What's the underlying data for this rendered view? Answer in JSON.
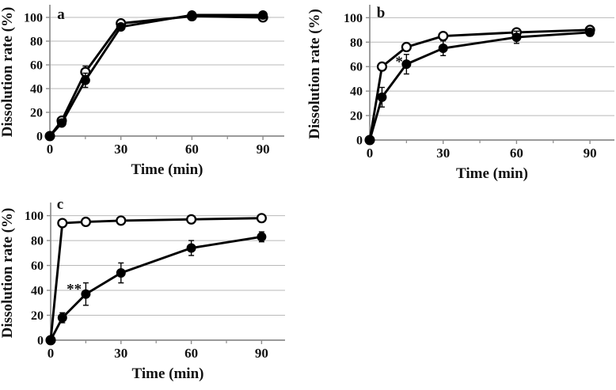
{
  "figure": {
    "background": "#ffffff",
    "text_color": "#111111",
    "gridline_color": "#b9b9b9",
    "axis_color": "#8c8c8c",
    "series_color": "#000000"
  },
  "chart_data": [
    {
      "id": "a",
      "panel_label": "a",
      "type": "line",
      "xlabel": "Time (min)",
      "ylabel": "Dissolution rate (%)",
      "x": [
        0,
        5,
        15,
        30,
        60,
        90
      ],
      "series": [
        {
          "name": "open-circle",
          "marker": "open",
          "values": [
            0,
            13,
            54,
            95,
            101,
            100
          ],
          "errors": [
            0,
            2,
            5,
            2,
            2,
            2
          ]
        },
        {
          "name": "filled-circle",
          "marker": "filled",
          "values": [
            0,
            11,
            47,
            92,
            102,
            102
          ],
          "errors": [
            0,
            2,
            6,
            2,
            2,
            2
          ]
        }
      ],
      "xlim": [
        0,
        99
      ],
      "ylim": [
        0,
        108
      ],
      "yticks": [
        0,
        20,
        40,
        60,
        80,
        100
      ],
      "xticks_major": [
        0,
        30,
        60,
        90
      ],
      "xticks_minor": [
        15,
        45,
        75
      ],
      "grid": "horizontal",
      "legend": "none",
      "annotations": []
    },
    {
      "id": "b",
      "panel_label": "b",
      "type": "line",
      "xlabel": "Time (min)",
      "ylabel": "Dissolution rate (%)",
      "x": [
        0,
        5,
        15,
        30,
        60,
        90
      ],
      "series": [
        {
          "name": "open-circle",
          "marker": "open",
          "values": [
            0,
            60,
            76,
            85,
            88,
            90
          ],
          "errors": [
            0,
            3,
            3,
            3,
            3,
            2
          ]
        },
        {
          "name": "filled-circle",
          "marker": "filled",
          "values": [
            0,
            35,
            62,
            75,
            84,
            88
          ],
          "errors": [
            0,
            8,
            8,
            6,
            5,
            3
          ]
        }
      ],
      "xlim": [
        0,
        100
      ],
      "ylim": [
        0,
        108
      ],
      "yticks": [
        0,
        20,
        40,
        60,
        80,
        100
      ],
      "xticks_major": [
        0,
        30,
        60,
        90
      ],
      "xticks_minor": [
        15,
        45,
        75
      ],
      "grid": "horizontal",
      "legend": "none",
      "annotations": [
        {
          "text": "*",
          "x": 12,
          "y": 64
        }
      ]
    },
    {
      "id": "c",
      "panel_label": "c",
      "type": "line",
      "xlabel": "Time (min)",
      "ylabel": "Dissolution rate (%)",
      "x": [
        0,
        5,
        15,
        30,
        60,
        90
      ],
      "series": [
        {
          "name": "open-circle",
          "marker": "open",
          "values": [
            0,
            94,
            95,
            96,
            97,
            98
          ],
          "errors": [
            0,
            2,
            2,
            2,
            2,
            2
          ]
        },
        {
          "name": "filled-circle",
          "marker": "filled",
          "values": [
            0,
            18,
            37,
            54,
            74,
            83
          ],
          "errors": [
            0,
            4,
            9,
            8,
            6,
            4
          ]
        }
      ],
      "xlim": [
        0,
        100
      ],
      "ylim": [
        0,
        108
      ],
      "yticks": [
        0,
        20,
        40,
        60,
        80,
        100
      ],
      "xticks_major": [
        0,
        30,
        60,
        90
      ],
      "xticks_minor": [
        15,
        45,
        75
      ],
      "grid": "horizontal",
      "legend": "none",
      "annotations": [
        {
          "text": "**",
          "x": 10,
          "y": 41
        }
      ]
    }
  ]
}
